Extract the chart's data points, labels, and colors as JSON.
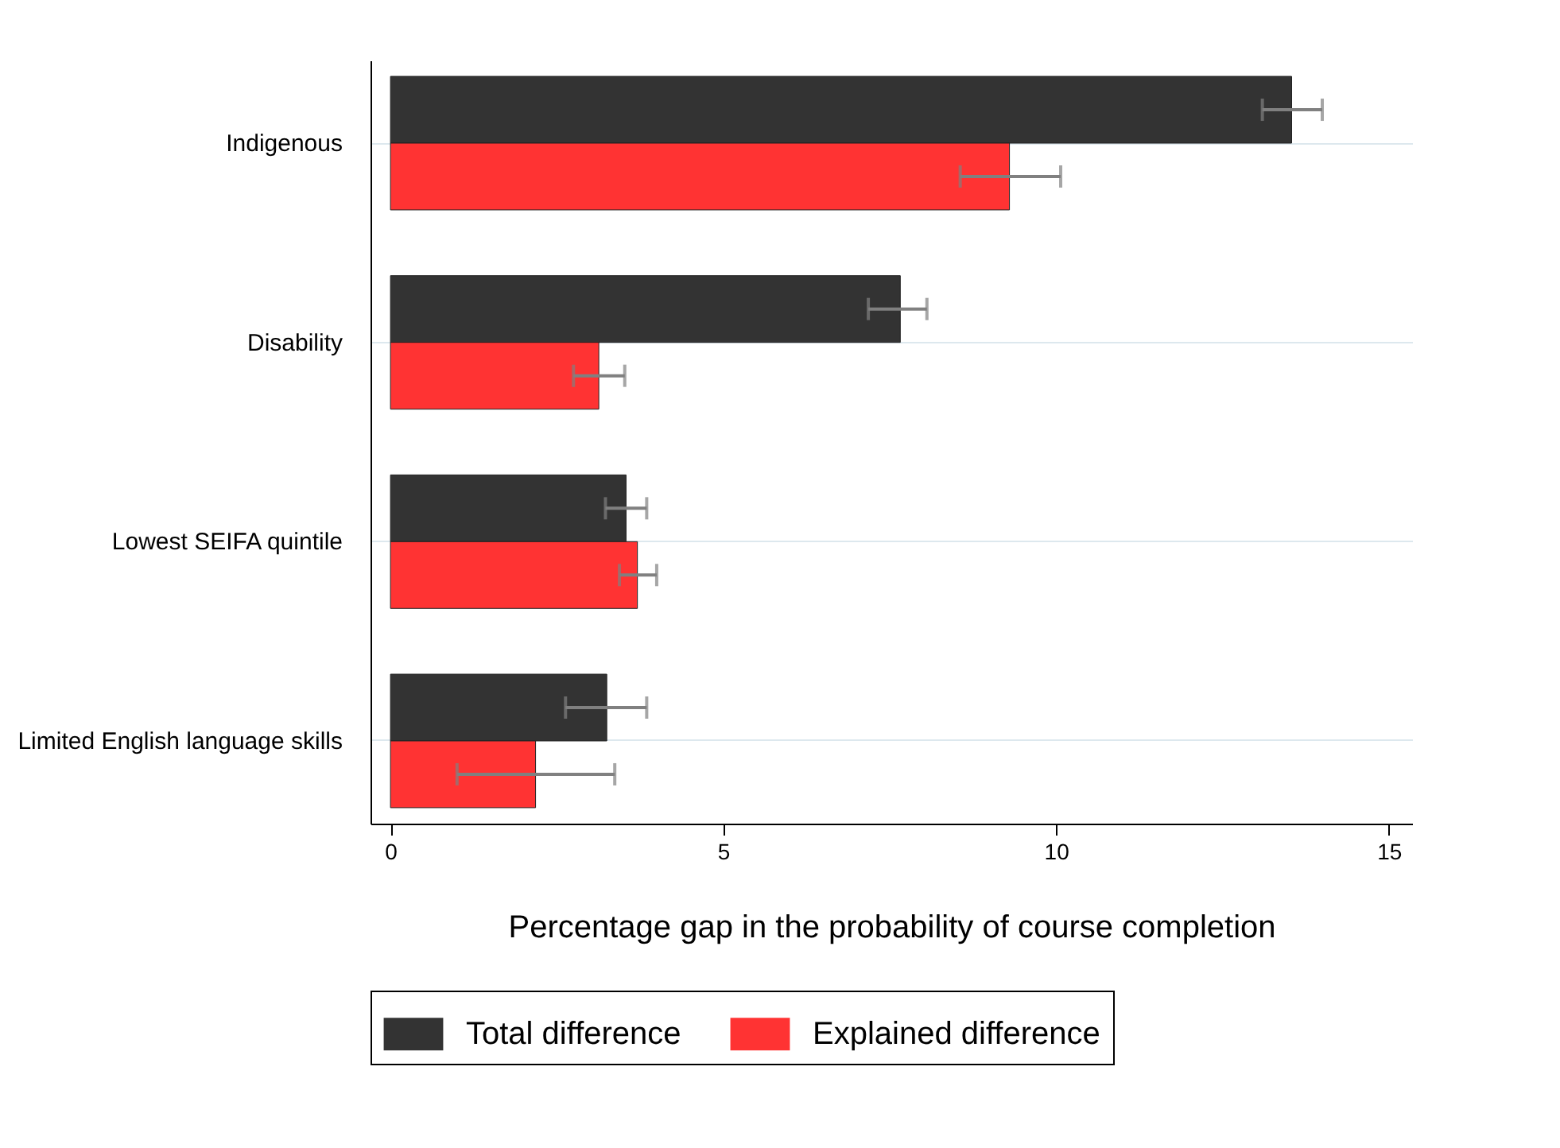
{
  "chart_data": {
    "type": "bar",
    "orientation": "horizontal",
    "xlabel": "Percentage gap in the probability of course completion",
    "categories": [
      "Indigenous",
      "Disability",
      "Lowest SEIFA quintile",
      "Limited English language skills"
    ],
    "series": [
      {
        "name": "Total difference",
        "color": "#333333",
        "values": [
          13.54,
          7.66,
          3.54,
          3.25
        ],
        "errors": [
          [
            13.1,
            14.0
          ],
          [
            7.18,
            8.06
          ],
          [
            3.23,
            3.85
          ],
          [
            2.63,
            3.85
          ]
        ]
      },
      {
        "name": "Explained difference",
        "color": "#ff3333",
        "values": [
          9.3,
          3.13,
          3.71,
          2.18
        ],
        "errors": [
          [
            8.56,
            10.07
          ],
          [
            2.75,
            3.52
          ],
          [
            3.44,
            4.0
          ],
          [
            1.0,
            3.37
          ]
        ]
      }
    ],
    "xlim": [
      -0.3,
      15.35
    ],
    "xticks": [
      0,
      5,
      10,
      15
    ],
    "grid": "y",
    "legend": "bottom"
  }
}
